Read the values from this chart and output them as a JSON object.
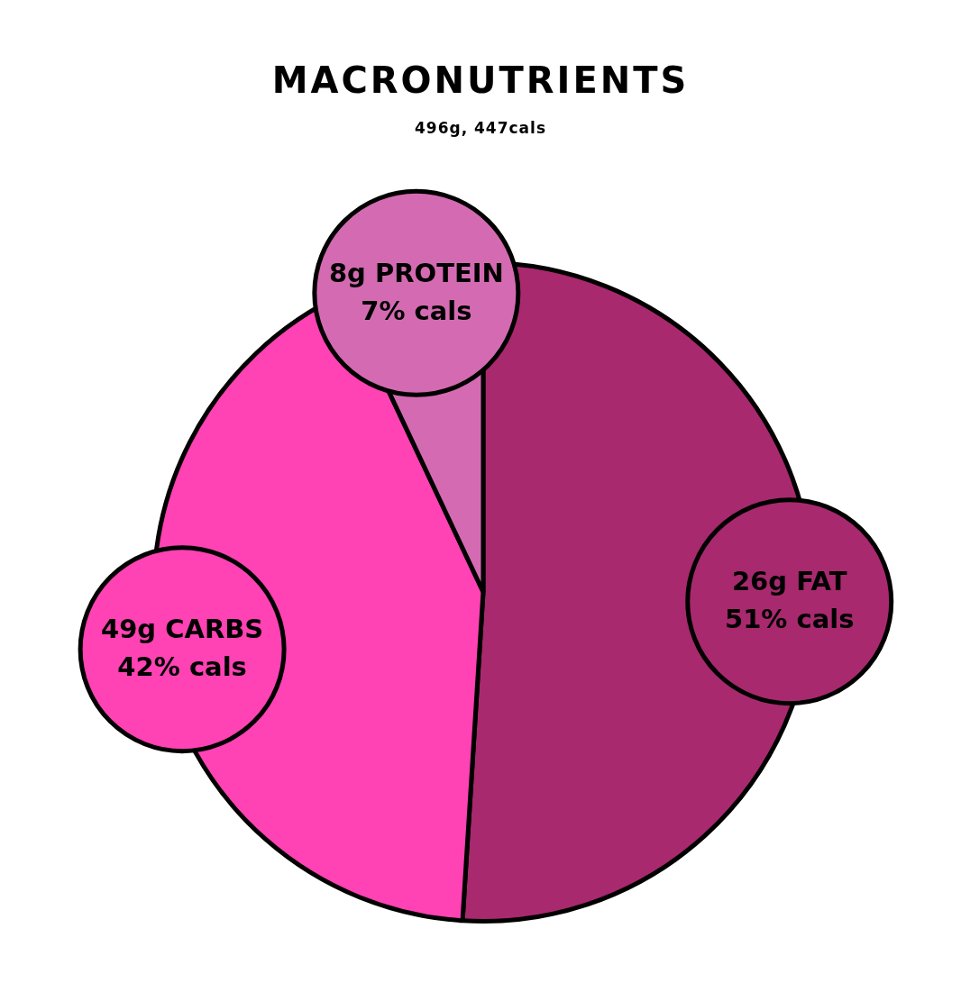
{
  "chart_data": {
    "type": "pie",
    "title": "MACRONUTRIENTS",
    "subtitle": "496g, 447cals",
    "categories": [
      "26g FAT",
      "49g CARBS",
      "8g PROTEIN"
    ],
    "values": [
      51,
      42,
      7
    ],
    "colors": [
      "#a8296e",
      "#ff42b4",
      "#d46bb2"
    ],
    "value_labels": [
      "51% cals",
      "42% cals",
      "7% cals"
    ],
    "legend": false
  }
}
